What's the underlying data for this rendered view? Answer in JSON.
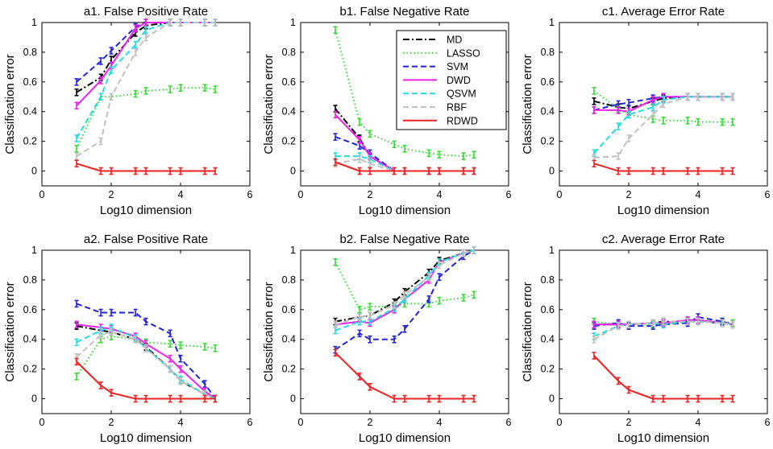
{
  "legend": {
    "entries": [
      {
        "key": "MD",
        "color": "#000000",
        "dash": "8,3,2,3"
      },
      {
        "key": "LASSO",
        "color": "#33dd33",
        "dash": "1.5,3"
      },
      {
        "key": "SVM",
        "color": "#2222dd",
        "dash": "7,4"
      },
      {
        "key": "DWD",
        "color": "#ee22ee",
        "dash": ""
      },
      {
        "key": "QSVM",
        "color": "#22dddd",
        "dash": "7,4"
      },
      {
        "key": "RBF",
        "color": "#c0c0c0",
        "dash": "7,4"
      },
      {
        "key": "RDWD",
        "color": "#ee2222",
        "dash": ""
      }
    ]
  },
  "chart_data": [
    {
      "type": "line",
      "title": "a1. False Positive Rate",
      "xlabel": "Log10 dimension",
      "ylabel": "Classification error",
      "xlim": [
        0,
        6
      ],
      "ylim": [
        -0.1,
        1
      ],
      "xticks": [
        "0",
        "2",
        "4",
        "6"
      ],
      "yticks": [
        "0",
        "0.2",
        "0.4",
        "0.6",
        "0.8",
        "1"
      ],
      "x": [
        1,
        1.7,
        2,
        2.7,
        3,
        3.7,
        4,
        4.7,
        5
      ],
      "series": [
        {
          "name": "MD",
          "values": [
            0.53,
            0.63,
            0.75,
            0.93,
            0.98,
            1.0,
            1.0,
            1.0,
            1.0
          ]
        },
        {
          "name": "LASSO",
          "values": [
            0.15,
            0.5,
            0.5,
            0.52,
            0.54,
            0.55,
            0.56,
            0.56,
            0.55
          ]
        },
        {
          "name": "SVM",
          "values": [
            0.6,
            0.74,
            0.81,
            0.97,
            1.0,
            1.0,
            1.0,
            1.0,
            1.0
          ]
        },
        {
          "name": "DWD",
          "values": [
            0.44,
            0.61,
            0.71,
            0.96,
            1.0,
            1.0,
            1.0,
            1.0,
            1.0
          ]
        },
        {
          "name": "QSVM",
          "values": [
            0.22,
            0.5,
            0.68,
            0.85,
            0.95,
            1.0,
            1.0,
            1.0,
            1.0
          ]
        },
        {
          "name": "RBF",
          "values": [
            0.1,
            0.2,
            0.5,
            0.8,
            0.9,
            1.0,
            1.0,
            1.0,
            1.0
          ]
        },
        {
          "name": "RDWD",
          "values": [
            0.05,
            0.0,
            0.0,
            0.0,
            0.0,
            0.0,
            0.0,
            0.0,
            0.0
          ]
        }
      ]
    },
    {
      "type": "line",
      "title": "b1. False Negative Rate",
      "xlabel": "Log10 dimension",
      "ylabel": "Classification error",
      "xlim": [
        0,
        6
      ],
      "ylim": [
        -0.1,
        1
      ],
      "xticks": [
        "0",
        "2",
        "4",
        "6"
      ],
      "yticks": [
        "0",
        "0.2",
        "0.4",
        "0.6",
        "0.8",
        "1"
      ],
      "x": [
        1,
        1.7,
        2,
        2.7,
        3,
        3.7,
        4,
        4.7,
        5
      ],
      "series": [
        {
          "name": "MD",
          "values": [
            0.42,
            0.22,
            0.1,
            0.0,
            0.0,
            0.0,
            0.0,
            0.0,
            0.0
          ]
        },
        {
          "name": "LASSO",
          "values": [
            0.95,
            0.33,
            0.25,
            0.18,
            0.15,
            0.12,
            0.11,
            0.1,
            0.11
          ]
        },
        {
          "name": "SVM",
          "values": [
            0.23,
            0.17,
            0.12,
            0.0,
            0.0,
            0.0,
            0.0,
            0.0,
            0.0
          ]
        },
        {
          "name": "DWD",
          "values": [
            0.38,
            0.21,
            0.1,
            0.0,
            0.0,
            0.0,
            0.0,
            0.0,
            0.0
          ]
        },
        {
          "name": "QSVM",
          "values": [
            0.1,
            0.1,
            0.08,
            0.0,
            0.0,
            0.0,
            0.0,
            0.0,
            0.0
          ]
        },
        {
          "name": "RBF",
          "values": [
            0.05,
            0.08,
            0.05,
            0.0,
            0.0,
            0.0,
            0.0,
            0.0,
            0.0
          ]
        },
        {
          "name": "RDWD",
          "values": [
            0.06,
            0.0,
            0.0,
            0.0,
            0.0,
            0.0,
            0.0,
            0.0,
            0.0
          ]
        }
      ]
    },
    {
      "type": "line",
      "title": "c1. Average Error Rate",
      "xlabel": "Log10 dimension",
      "ylabel": "Classification error",
      "xlim": [
        0,
        6
      ],
      "ylim": [
        -0.1,
        1
      ],
      "xticks": [
        "0",
        "2",
        "4",
        "6"
      ],
      "yticks": [
        "0",
        "0.2",
        "0.4",
        "0.6",
        "0.8",
        "1"
      ],
      "x": [
        1,
        1.7,
        2,
        2.7,
        3,
        3.7,
        4,
        4.7,
        5
      ],
      "series": [
        {
          "name": "MD",
          "values": [
            0.47,
            0.43,
            0.42,
            0.47,
            0.49,
            0.5,
            0.5,
            0.5,
            0.5
          ]
        },
        {
          "name": "LASSO",
          "values": [
            0.54,
            0.42,
            0.38,
            0.35,
            0.34,
            0.34,
            0.33,
            0.33,
            0.33
          ]
        },
        {
          "name": "SVM",
          "values": [
            0.41,
            0.45,
            0.46,
            0.49,
            0.5,
            0.5,
            0.5,
            0.5,
            0.5
          ]
        },
        {
          "name": "DWD",
          "values": [
            0.41,
            0.41,
            0.4,
            0.48,
            0.5,
            0.5,
            0.5,
            0.5,
            0.5
          ]
        },
        {
          "name": "QSVM",
          "values": [
            0.12,
            0.3,
            0.38,
            0.43,
            0.48,
            0.5,
            0.5,
            0.5,
            0.5
          ]
        },
        {
          "name": "RBF",
          "values": [
            0.09,
            0.1,
            0.22,
            0.38,
            0.45,
            0.5,
            0.5,
            0.5,
            0.5
          ]
        },
        {
          "name": "RDWD",
          "values": [
            0.05,
            0.0,
            0.0,
            0.0,
            0.0,
            0.0,
            0.0,
            0.0,
            0.0
          ]
        }
      ]
    },
    {
      "type": "line",
      "title": "a2. False Positive Rate",
      "xlabel": "Log10 dimension",
      "ylabel": "Classification error",
      "xlim": [
        0,
        6
      ],
      "ylim": [
        -0.1,
        1
      ],
      "xticks": [
        "0",
        "2",
        "4",
        "6"
      ],
      "yticks": [
        "0",
        "0.2",
        "0.4",
        "0.6",
        "0.8",
        "1"
      ],
      "x": [
        1,
        1.7,
        2,
        2.7,
        3,
        3.7,
        4,
        4.7,
        5
      ],
      "series": [
        {
          "name": "MD",
          "values": [
            0.49,
            0.46,
            0.45,
            0.4,
            0.35,
            0.2,
            0.12,
            0.03,
            0.0
          ]
        },
        {
          "name": "LASSO",
          "values": [
            0.15,
            0.4,
            0.42,
            0.4,
            0.38,
            0.37,
            0.36,
            0.35,
            0.34
          ]
        },
        {
          "name": "SVM",
          "values": [
            0.64,
            0.58,
            0.58,
            0.58,
            0.52,
            0.44,
            0.27,
            0.1,
            0.0
          ]
        },
        {
          "name": "DWD",
          "values": [
            0.5,
            0.48,
            0.47,
            0.42,
            0.37,
            0.27,
            0.2,
            0.05,
            0.0
          ]
        },
        {
          "name": "QSVM",
          "values": [
            0.38,
            0.46,
            0.48,
            0.41,
            0.34,
            0.2,
            0.13,
            0.03,
            0.0
          ]
        },
        {
          "name": "RBF",
          "values": [
            0.28,
            0.43,
            0.45,
            0.4,
            0.34,
            0.2,
            0.12,
            0.03,
            0.0
          ]
        },
        {
          "name": "RDWD",
          "values": [
            0.25,
            0.09,
            0.04,
            0.0,
            0.0,
            0.0,
            0.0,
            0.0,
            0.0
          ]
        }
      ]
    },
    {
      "type": "line",
      "title": "b2. False Negative Rate",
      "xlabel": "Log10 dimension",
      "ylabel": "Classification error",
      "xlim": [
        0,
        6
      ],
      "ylim": [
        -0.1,
        1
      ],
      "xticks": [
        "0",
        "2",
        "4",
        "6"
      ],
      "yticks": [
        "0",
        "0.2",
        "0.4",
        "0.6",
        "0.8",
        "1"
      ],
      "x": [
        1,
        1.7,
        2,
        2.7,
        3,
        3.7,
        4,
        4.7,
        5
      ],
      "series": [
        {
          "name": "MD",
          "values": [
            0.52,
            0.55,
            0.56,
            0.65,
            0.72,
            0.85,
            0.93,
            0.98,
            1.0
          ]
        },
        {
          "name": "LASSO",
          "values": [
            0.92,
            0.6,
            0.62,
            0.62,
            0.64,
            0.64,
            0.66,
            0.68,
            0.7
          ]
        },
        {
          "name": "SVM",
          "values": [
            0.33,
            0.44,
            0.4,
            0.4,
            0.47,
            0.67,
            0.82,
            0.96,
            1.0
          ]
        },
        {
          "name": "DWD",
          "values": [
            0.5,
            0.52,
            0.51,
            0.6,
            0.67,
            0.8,
            0.92,
            0.98,
            1.0
          ]
        },
        {
          "name": "QSVM",
          "values": [
            0.46,
            0.52,
            0.52,
            0.61,
            0.67,
            0.83,
            0.92,
            0.98,
            1.0
          ]
        },
        {
          "name": "RBF",
          "values": [
            0.5,
            0.55,
            0.56,
            0.63,
            0.7,
            0.82,
            0.9,
            0.98,
            1.0
          ]
        },
        {
          "name": "RDWD",
          "values": [
            0.31,
            0.15,
            0.08,
            0.0,
            0.0,
            0.0,
            0.0,
            0.0,
            0.0
          ]
        }
      ]
    },
    {
      "type": "line",
      "title": "c2. Average Error Rate",
      "xlabel": "Log10 dimension",
      "ylabel": "Classification error",
      "xlim": [
        0,
        6
      ],
      "ylim": [
        -0.1,
        1
      ],
      "xticks": [
        "0",
        "2",
        "4",
        "6"
      ],
      "yticks": [
        "0",
        "0.2",
        "0.4",
        "0.6",
        "0.8",
        "1"
      ],
      "x": [
        1,
        1.7,
        2,
        2.7,
        3,
        3.7,
        4,
        4.7,
        5
      ],
      "series": [
        {
          "name": "MD",
          "values": [
            0.5,
            0.5,
            0.5,
            0.51,
            0.52,
            0.52,
            0.52,
            0.51,
            0.5
          ]
        },
        {
          "name": "LASSO",
          "values": [
            0.52,
            0.5,
            0.5,
            0.5,
            0.51,
            0.52,
            0.53,
            0.52,
            0.51
          ]
        },
        {
          "name": "SVM",
          "values": [
            0.49,
            0.51,
            0.49,
            0.49,
            0.5,
            0.51,
            0.55,
            0.52,
            0.5
          ]
        },
        {
          "name": "DWD",
          "values": [
            0.5,
            0.5,
            0.5,
            0.51,
            0.51,
            0.53,
            0.53,
            0.51,
            0.5
          ]
        },
        {
          "name": "QSVM",
          "values": [
            0.42,
            0.49,
            0.5,
            0.51,
            0.5,
            0.52,
            0.52,
            0.51,
            0.5
          ]
        },
        {
          "name": "RBF",
          "values": [
            0.4,
            0.49,
            0.5,
            0.51,
            0.52,
            0.52,
            0.52,
            0.51,
            0.5
          ]
        },
        {
          "name": "RDWD",
          "values": [
            0.29,
            0.12,
            0.06,
            0.0,
            0.0,
            0.0,
            0.0,
            0.0,
            0.0
          ]
        }
      ]
    }
  ]
}
